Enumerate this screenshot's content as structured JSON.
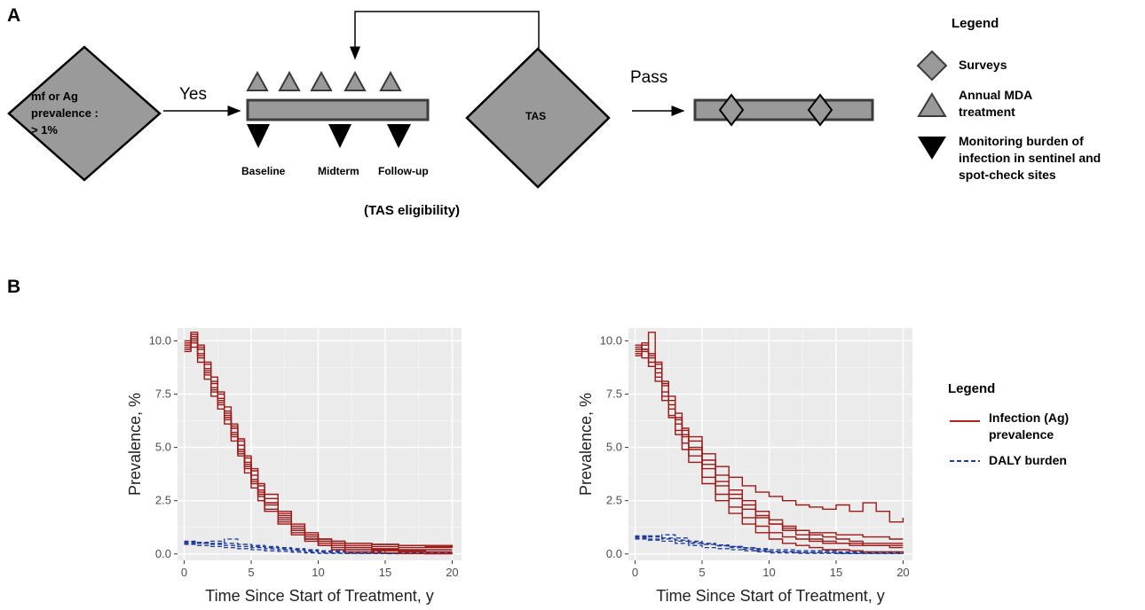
{
  "panel_a": {
    "label": "A",
    "start_diamond": {
      "lines": [
        "mf or Ag",
        "prevalence :",
        "> 1%"
      ]
    },
    "arrow_yes": "Yes",
    "timeline_labels": [
      "Baseline",
      "Midterm",
      "Follow-up"
    ],
    "tas_eligibility": "(TAS eligibility)",
    "tas_diamond": "TAS",
    "arrow_pass": "Pass",
    "legend": {
      "title": "Legend",
      "items": [
        {
          "icon": "diamond-icon",
          "lines": [
            "Surveys"
          ]
        },
        {
          "icon": "triangle-up-icon",
          "lines": [
            "Annual MDA",
            "treatment"
          ]
        },
        {
          "icon": "triangle-down-icon",
          "lines": [
            "Monitoring burden of",
            "infection in sentinel and",
            "spot-check sites"
          ]
        }
      ]
    },
    "colors": {
      "shape_fill": "#9a9a9a",
      "shape_stroke": "#3c3c3c"
    }
  },
  "panel_b": {
    "label": "B",
    "legend": {
      "title": "Legend",
      "items": [
        {
          "style": "solid",
          "color": "#b22222",
          "lines": [
            "Infection (Ag)",
            "prevalence"
          ]
        },
        {
          "style": "dashed",
          "color": "#1f3c99",
          "lines": [
            "DALY burden"
          ]
        }
      ]
    }
  },
  "chart_data": [
    {
      "type": "line",
      "xlabel": "Time Since Start of Treatment, y",
      "ylabel": "Prevalence, %",
      "xlim": [
        -0.5,
        20.7
      ],
      "ylim": [
        -0.3,
        10.6
      ],
      "xticks": [
        "0",
        "5",
        "10",
        "15",
        "20"
      ],
      "yticks": [
        "0.0",
        "2.5",
        "5.0",
        "7.5",
        "10.0"
      ],
      "grid": true,
      "background": "#ebebeb",
      "series_colors": {
        "infection": "#9b1b1b",
        "daly": "#1f3c99"
      },
      "infection_series": [
        {
          "x": [
            0,
            0.5,
            1,
            1.5,
            2,
            2.5,
            3,
            3.5,
            4,
            4.5,
            5,
            5.5,
            6,
            7,
            8,
            9,
            10,
            11,
            12,
            14,
            16,
            18,
            20
          ],
          "y": [
            9.8,
            10.2,
            9.6,
            8.9,
            8.1,
            7.3,
            6.6,
            5.9,
            5.1,
            4.3,
            3.7,
            3.0,
            2.4,
            1.7,
            1.1,
            0.7,
            0.4,
            0.2,
            0.1,
            0.05,
            0.02,
            0.01,
            0.0
          ]
        },
        {
          "x": [
            0,
            0.5,
            1,
            1.5,
            2,
            2.5,
            3,
            3.5,
            4,
            4.5,
            5,
            5.5,
            6,
            7,
            8,
            9,
            10,
            11,
            12,
            14,
            16,
            18,
            20
          ],
          "y": [
            9.7,
            10.4,
            9.2,
            8.5,
            7.7,
            7.0,
            6.3,
            5.6,
            4.8,
            4.1,
            3.4,
            2.8,
            2.3,
            1.6,
            1.1,
            0.8,
            0.6,
            0.5,
            0.4,
            0.35,
            0.3,
            0.3,
            0.3
          ]
        },
        {
          "x": [
            0,
            0.5,
            1,
            1.5,
            2,
            2.5,
            3,
            3.5,
            4,
            4.5,
            5,
            5.5,
            6,
            7,
            8,
            9,
            10,
            11,
            12,
            14,
            16,
            18,
            20
          ],
          "y": [
            10.0,
            9.9,
            9.0,
            8.2,
            7.4,
            6.8,
            6.1,
            5.3,
            4.6,
            3.8,
            3.1,
            2.5,
            2.0,
            1.4,
            0.9,
            0.6,
            0.4,
            0.3,
            0.2,
            0.15,
            0.1,
            0.1,
            0.1
          ]
        },
        {
          "x": [
            0,
            0.5,
            1,
            1.5,
            2,
            2.5,
            3,
            3.5,
            4,
            4.5,
            5,
            5.5,
            6,
            7,
            8,
            9,
            10,
            11,
            12,
            14,
            16,
            18,
            20
          ],
          "y": [
            9.5,
            10.0,
            9.7,
            8.7,
            8.0,
            7.5,
            6.9,
            6.0,
            5.3,
            4.6,
            4.0,
            3.3,
            2.8,
            2.0,
            1.4,
            1.0,
            0.7,
            0.6,
            0.5,
            0.45,
            0.4,
            0.35,
            0.3
          ]
        },
        {
          "x": [
            0,
            0.5,
            1,
            1.5,
            2,
            2.5,
            3,
            3.5,
            4,
            4.5,
            5,
            5.5,
            6,
            7,
            8,
            9,
            10,
            11,
            12,
            14,
            16,
            18,
            20
          ],
          "y": [
            9.9,
            10.3,
            9.3,
            8.4,
            7.6,
            7.1,
            6.5,
            5.7,
            4.9,
            4.2,
            3.5,
            2.9,
            2.4,
            1.8,
            1.3,
            0.9,
            0.6,
            0.5,
            0.3,
            0.2,
            0.15,
            0.1,
            0.1
          ]
        },
        {
          "x": [
            0,
            0.5,
            1,
            1.5,
            2,
            2.5,
            3,
            3.5,
            4,
            4.5,
            5,
            5.5,
            6,
            7,
            8,
            9,
            10,
            11,
            12,
            14,
            16,
            18,
            20
          ],
          "y": [
            9.6,
            10.1,
            9.8,
            9.0,
            8.3,
            7.6,
            6.7,
            6.1,
            5.4,
            4.5,
            3.9,
            3.2,
            2.6,
            1.9,
            1.2,
            0.9,
            0.7,
            0.6,
            0.5,
            0.45,
            0.4,
            0.4,
            0.35
          ]
        },
        {
          "x": [
            0,
            0.5,
            1,
            1.5,
            2,
            2.5,
            3,
            3.5,
            4,
            4.5,
            5,
            5.5,
            6,
            7,
            8,
            9,
            10,
            11,
            12,
            14,
            16,
            18,
            20
          ],
          "y": [
            9.8,
            9.7,
            9.4,
            8.6,
            7.8,
            7.2,
            6.4,
            5.5,
            4.7,
            4.0,
            3.3,
            2.7,
            2.1,
            1.5,
            1.0,
            0.7,
            0.5,
            0.4,
            0.3,
            0.25,
            0.2,
            0.2,
            0.2
          ]
        }
      ],
      "daly_series": [
        {
          "x": [
            0,
            1,
            2,
            3,
            4,
            5,
            6,
            7,
            8,
            9,
            10,
            12,
            15,
            20
          ],
          "y": [
            0.55,
            0.5,
            0.45,
            0.4,
            0.35,
            0.3,
            0.25,
            0.2,
            0.15,
            0.1,
            0.05,
            0.03,
            0.02,
            0.0
          ]
        },
        {
          "x": [
            0,
            1,
            2,
            3,
            4,
            5,
            6,
            7,
            8,
            9,
            10,
            12,
            15,
            20
          ],
          "y": [
            0.5,
            0.55,
            0.6,
            0.5,
            0.45,
            0.4,
            0.35,
            0.3,
            0.25,
            0.2,
            0.15,
            0.1,
            0.05,
            0.02
          ]
        },
        {
          "x": [
            0,
            1,
            2,
            3,
            4,
            5,
            6,
            7,
            8,
            9,
            10,
            12,
            15,
            20
          ],
          "y": [
            0.45,
            0.4,
            0.35,
            0.3,
            0.25,
            0.2,
            0.15,
            0.12,
            0.08,
            0.05,
            0.03,
            0.02,
            0.01,
            0.0
          ]
        },
        {
          "x": [
            0,
            1,
            2,
            3,
            4,
            5,
            6,
            7,
            8,
            9,
            10,
            12,
            15,
            20
          ],
          "y": [
            0.6,
            0.5,
            0.5,
            0.7,
            0.45,
            0.35,
            0.3,
            0.25,
            0.2,
            0.15,
            0.1,
            0.05,
            0.03,
            0.01
          ]
        }
      ]
    },
    {
      "type": "line",
      "xlabel": "Time Since Start of Treatment, y",
      "ylabel": "Prevalence, %",
      "xlim": [
        -0.5,
        20.7
      ],
      "ylim": [
        -0.3,
        10.6
      ],
      "xticks": [
        "0",
        "5",
        "10",
        "15",
        "20"
      ],
      "yticks": [
        "0.0",
        "2.5",
        "5.0",
        "7.5",
        "10.0"
      ],
      "grid": true,
      "background": "#ebebeb",
      "series_colors": {
        "infection": "#9b1b1b",
        "daly": "#1f3c99"
      },
      "infection_series": [
        {
          "x": [
            0,
            0.5,
            1,
            1.5,
            2,
            2.5,
            3,
            3.5,
            4,
            5,
            6,
            7,
            8,
            9,
            10,
            11,
            12,
            13,
            14,
            15,
            16,
            17,
            18,
            19,
            20
          ],
          "y": [
            9.5,
            9.8,
            10.4,
            9.0,
            8.0,
            7.2,
            6.4,
            5.8,
            5.5,
            4.7,
            4.1,
            3.6,
            3.2,
            2.9,
            2.7,
            2.5,
            2.3,
            2.2,
            2.1,
            2.3,
            2.0,
            2.4,
            2.0,
            1.5,
            1.7
          ]
        },
        {
          "x": [
            0,
            0.5,
            1,
            1.5,
            2,
            2.5,
            3,
            3.5,
            4,
            5,
            6,
            7,
            8,
            9,
            10,
            11,
            12,
            13,
            14,
            15,
            16,
            17,
            18,
            19,
            20
          ],
          "y": [
            9.6,
            9.9,
            9.3,
            8.5,
            7.6,
            6.8,
            6.1,
            5.5,
            4.9,
            4.0,
            3.2,
            2.6,
            2.1,
            1.7,
            1.4,
            1.2,
            1.1,
            1.0,
            1.0,
            0.9,
            0.9,
            0.8,
            0.8,
            0.7,
            0.7
          ]
        },
        {
          "x": [
            0,
            0.5,
            1,
            1.5,
            2,
            2.5,
            3,
            3.5,
            4,
            5,
            6,
            7,
            8,
            9,
            10,
            11,
            12,
            13,
            14,
            15,
            16,
            17,
            18,
            19,
            20
          ],
          "y": [
            9.3,
            9.6,
            9.0,
            8.3,
            7.4,
            6.5,
            5.8,
            5.2,
            4.6,
            3.6,
            2.8,
            2.2,
            1.7,
            1.3,
            1.0,
            0.8,
            0.7,
            0.6,
            0.5,
            0.5,
            0.4,
            0.4,
            0.4,
            0.3,
            0.3
          ]
        },
        {
          "x": [
            0,
            0.5,
            1,
            1.5,
            2,
            2.5,
            3,
            3.5,
            4,
            5,
            6,
            7,
            8,
            9,
            10,
            11,
            12,
            13,
            14,
            15,
            16,
            17,
            18,
            19,
            20
          ],
          "y": [
            9.7,
            9.5,
            9.2,
            8.7,
            7.9,
            7.0,
            6.3,
            5.6,
            5.0,
            4.2,
            3.4,
            2.8,
            2.3,
            1.8,
            1.4,
            1.1,
            0.9,
            0.7,
            0.6,
            0.5,
            0.5,
            0.4,
            0.4,
            0.4,
            0.4
          ]
        },
        {
          "x": [
            0,
            0.5,
            1,
            1.5,
            2,
            2.5,
            3,
            3.5,
            4,
            5,
            6,
            7,
            8,
            9,
            10,
            11,
            12,
            13,
            14,
            15,
            16,
            17,
            18,
            19,
            20
          ],
          "y": [
            9.4,
            9.2,
            8.8,
            8.1,
            7.2,
            6.4,
            5.6,
            4.9,
            4.3,
            3.3,
            2.5,
            1.9,
            1.4,
            1.0,
            0.7,
            0.5,
            0.4,
            0.3,
            0.2,
            0.2,
            0.15,
            0.1,
            0.1,
            0.1,
            0.0
          ]
        },
        {
          "x": [
            0,
            0.5,
            1,
            1.5,
            2,
            2.5,
            3,
            3.5,
            4,
            5,
            6,
            7,
            8,
            9,
            10,
            11,
            12,
            13,
            14,
            15,
            16,
            17,
            18,
            19,
            20
          ],
          "y": [
            9.8,
            9.6,
            9.4,
            8.9,
            8.1,
            7.4,
            6.6,
            5.9,
            5.3,
            4.4,
            3.7,
            3.0,
            2.5,
            2.0,
            1.6,
            1.3,
            1.1,
            0.9,
            0.8,
            0.7,
            0.6,
            0.5,
            0.5,
            0.5,
            0.5
          ]
        }
      ],
      "daly_series": [
        {
          "x": [
            0,
            1,
            2,
            3,
            4,
            5,
            6,
            7,
            8,
            9,
            10,
            12,
            15,
            20
          ],
          "y": [
            0.8,
            0.85,
            0.7,
            0.6,
            0.5,
            0.45,
            0.4,
            0.35,
            0.3,
            0.25,
            0.2,
            0.15,
            0.1,
            0.05
          ]
        },
        {
          "x": [
            0,
            1,
            2,
            3,
            4,
            5,
            6,
            7,
            8,
            9,
            10,
            12,
            15,
            20
          ],
          "y": [
            0.75,
            0.7,
            0.9,
            0.75,
            0.6,
            0.5,
            0.42,
            0.35,
            0.28,
            0.2,
            0.12,
            0.08,
            0.05,
            0.02
          ]
        },
        {
          "x": [
            0,
            1,
            2,
            3,
            4,
            5,
            6,
            7,
            8,
            9,
            10,
            12,
            15,
            20
          ],
          "y": [
            0.7,
            0.65,
            0.6,
            0.5,
            0.4,
            0.3,
            0.25,
            0.2,
            0.15,
            0.1,
            0.05,
            0.03,
            0.02,
            0.0
          ]
        },
        {
          "x": [
            0,
            1,
            2,
            3,
            4,
            5,
            6,
            7,
            8,
            9,
            10,
            12,
            15,
            20
          ],
          "y": [
            0.85,
            0.8,
            0.75,
            0.65,
            0.55,
            0.45,
            0.38,
            0.3,
            0.22,
            0.15,
            0.1,
            0.06,
            0.03,
            0.01
          ]
        }
      ]
    }
  ]
}
